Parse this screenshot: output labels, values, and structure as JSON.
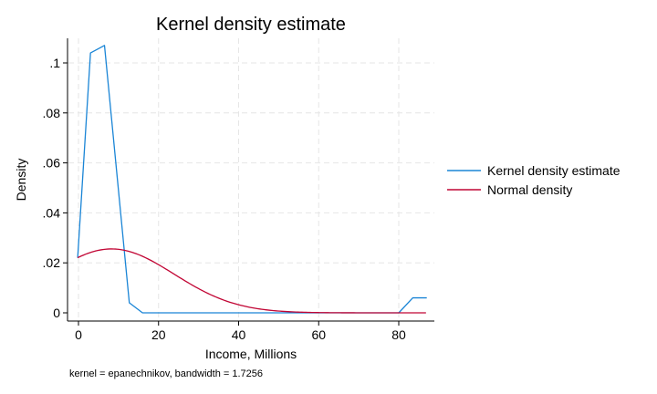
{
  "chart_data": {
    "type": "line",
    "title": "Kernel density estimate",
    "xlabel": "Income, Millions",
    "ylabel": "Density",
    "note": "kernel = epanechnikov, bandwidth = 1.7256",
    "xlim": [
      -2,
      88
    ],
    "ylim": [
      0,
      0.11
    ],
    "xticks": [
      {
        "value": 0,
        "label": "0"
      },
      {
        "value": 20,
        "label": "20"
      },
      {
        "value": 40,
        "label": "40"
      },
      {
        "value": 60,
        "label": "60"
      },
      {
        "value": 80,
        "label": "80"
      }
    ],
    "yticks": [
      {
        "value": 0,
        "label": "0"
      },
      {
        "value": 0.02,
        "label": ".02"
      },
      {
        "value": 0.04,
        "label": ".04"
      },
      {
        "value": 0.06,
        "label": ".06"
      },
      {
        "value": 0.08,
        "label": ".08"
      },
      {
        "value": 0.1,
        "label": ".1"
      }
    ],
    "grid": true,
    "legend_position": "right",
    "series": [
      {
        "name": "Kernel density estimate",
        "color": "#1a85d6",
        "points": [
          [
            -0.2,
            0.022
          ],
          [
            3,
            0.104
          ],
          [
            6.5,
            0.107
          ],
          [
            12.7,
            0.004
          ],
          [
            16,
            0
          ],
          [
            20,
            0
          ],
          [
            40,
            0
          ],
          [
            60,
            0
          ],
          [
            80,
            0
          ],
          [
            83.5,
            0.006
          ],
          [
            87,
            0.006
          ]
        ]
      },
      {
        "name": "Normal density",
        "color": "#c10534",
        "mean": 8.27,
        "sd": 15.6,
        "x_range": [
          -0.2,
          87
        ],
        "points": []
      }
    ]
  }
}
